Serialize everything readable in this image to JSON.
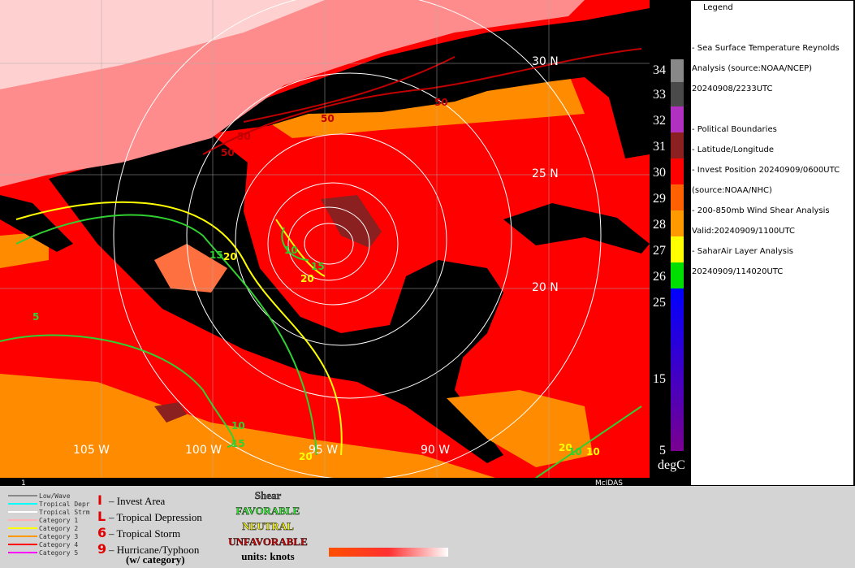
{
  "map": {
    "lat_labels": [
      "30 N",
      "25 N",
      "20 N"
    ],
    "lon_labels": [
      "105 W",
      "100 W",
      "95 W",
      "90 W"
    ],
    "shear_labels": [
      "50",
      "50",
      "50",
      "50",
      "10",
      "15",
      "20",
      "15",
      "20",
      "5",
      "10",
      "15",
      "20",
      "20",
      "10",
      "10"
    ],
    "corner_label": "1",
    "credit": "McIDAS"
  },
  "colorbar": {
    "labels": [
      "34",
      "33",
      "32",
      "31",
      "30",
      "29",
      "28",
      "27",
      "26",
      "25",
      "15",
      "5"
    ],
    "unit": "degC"
  },
  "legend": {
    "title": "Legend",
    "lines": [
      "-  Sea Surface Temperature  Reynolds",
      "Analysis  (source:NOAA/NCEP)",
      "20240908/2233UTC",
      "-  Political Boundaries",
      "-  Latitude/Longitude",
      "-  Invest Position  20240909/0600UTC",
      "(source:NOAA/NHC)",
      "-  200-850mb Wind Shear Analysis",
      "Valid:20240909/1100UTC",
      "-  SaharAir Layer Analysis",
      "20240909/114020UTC"
    ]
  },
  "footer": {
    "tracks": [
      "Low/Wave",
      "Tropical Depr",
      "Tropical Strm",
      "Category 1",
      "Category 2",
      "Category 3",
      "Category 4",
      "Category 5"
    ],
    "symbols": [
      "– Invest Area",
      "– Tropical Depression",
      "– Tropical Storm",
      "– Hurricane/Typhoon"
    ],
    "symbol_note": "(w/ category)",
    "shear": {
      "title": "Shear",
      "favorable": "FAVORABLE",
      "neutral": "NEUTRAL",
      "unfavorable": "UNFAVORABLE",
      "units": "units: knots"
    }
  }
}
